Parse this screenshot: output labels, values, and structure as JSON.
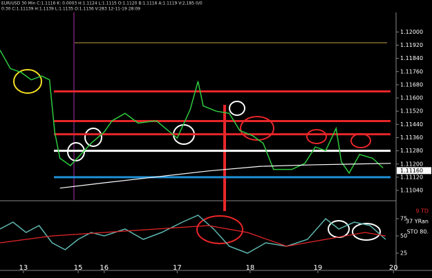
{
  "header": {
    "line1": "EUR/USD 30 Min C:1.1116 K: 0.0003 H:1.1124 L:1.1115 O:1.1120 B:1.1116 A:1.1119 V:2,185 0/0",
    "line2": "0:30 C:1.11139 H:1.1139 L:1.1135 O:1.1136 V:283 12-11-19 28:09"
  },
  "chart_data": [
    {
      "type": "line",
      "xlim": [
        0,
        152
      ],
      "xticks": [
        {
          "value": 9,
          "label": "13"
        },
        {
          "value": 30,
          "label": "15"
        },
        {
          "value": 40,
          "label": "16"
        },
        {
          "value": 68,
          "label": "17"
        },
        {
          "value": 96,
          "label": "18"
        },
        {
          "value": 122,
          "label": "19"
        },
        {
          "value": 151,
          "label": "20"
        }
      ],
      "ylim": [
        1.1099,
        1.1211
      ],
      "yticks": [
        {
          "value": 1.12,
          "label": "1.12000"
        },
        {
          "value": 1.1192,
          "label": "1.11920"
        },
        {
          "value": 1.1184,
          "label": "1.11840"
        },
        {
          "value": 1.1176,
          "label": "1.11760"
        },
        {
          "value": 1.1168,
          "label": "1.11680"
        },
        {
          "value": 1.116,
          "label": "1.11600"
        },
        {
          "value": 1.1152,
          "label": "1.11520"
        },
        {
          "value": 1.1144,
          "label": "1.11440"
        },
        {
          "value": 1.1136,
          "label": "1.11360"
        },
        {
          "value": 1.1128,
          "label": "1.11280"
        },
        {
          "value": 1.112,
          "label": "1.11200"
        },
        {
          "value": 1.1112,
          "label": "1.11120"
        },
        {
          "value": 1.1104,
          "label": "1.11040"
        }
      ],
      "last_price": {
        "value": 1.1116,
        "label": "1.11160"
      },
      "series": [
        {
          "color": "#2ecc40",
          "x": [
            0,
            4,
            8,
            12,
            16,
            19,
            21,
            23,
            27,
            31,
            35,
            40,
            43,
            48,
            53,
            60,
            68,
            73,
            76,
            78,
            83,
            88,
            92,
            97,
            101,
            105,
            112,
            117,
            121,
            125,
            129,
            131,
            134,
            138,
            143,
            147
          ],
          "values": [
            1.1189,
            1.11778,
            1.11756,
            1.1171,
            1.11733,
            1.1171,
            1.11393,
            1.11235,
            1.1119,
            1.11258,
            1.11326,
            1.11394,
            1.11462,
            1.11507,
            1.11448,
            1.11462,
            1.11357,
            1.1153,
            1.11701,
            1.11552,
            1.1152,
            1.11507,
            1.11403,
            1.11371,
            1.11326,
            1.11167,
            1.11167,
            1.11204,
            1.11303,
            1.11281,
            1.11416,
            1.11213,
            1.11145,
            1.11258,
            1.11235,
            1.11176
          ]
        },
        {
          "color": "#ffffff",
          "x": [
            23,
            40,
            60,
            80,
            100,
            120,
            150
          ],
          "values": [
            1.11054,
            1.11086,
            1.11122,
            1.11158,
            1.11186,
            1.11195,
            1.11204
          ]
        }
      ],
      "levels": [
        {
          "value": 1.1164,
          "color": "#e8262a"
        },
        {
          "value": 1.1146,
          "color": "#e8262a"
        },
        {
          "value": 1.1138,
          "color": "#e8262a"
        },
        {
          "value": 1.1128,
          "color": "#ffffff"
        },
        {
          "value": 1.1112,
          "color": "#1e90d6"
        }
      ]
    },
    {
      "type": "line",
      "xlim": [
        0,
        152
      ],
      "ylim": [
        0,
        100
      ],
      "yticks": [
        75,
        50,
        25
      ],
      "labels": [
        "9 TD",
        "37 YRan",
        "STO 80."
      ],
      "series": [
        {
          "color": "#5fb7b0",
          "x": [
            0,
            5,
            10,
            15,
            20,
            25,
            30,
            35,
            40,
            48,
            55,
            62,
            70,
            76,
            82,
            88,
            95,
            102,
            110,
            118,
            125,
            130,
            136,
            142,
            148
          ],
          "values": [
            60,
            70,
            55,
            65,
            40,
            30,
            45,
            55,
            50,
            60,
            45,
            55,
            70,
            80,
            60,
            35,
            25,
            40,
            35,
            45,
            75,
            60,
            70,
            65,
            45
          ]
        },
        {
          "color": "#e8262a",
          "x": [
            0,
            20,
            40,
            60,
            80,
            95,
            110,
            125,
            140,
            148
          ],
          "values": [
            40,
            50,
            55,
            60,
            65,
            55,
            35,
            45,
            55,
            50
          ]
        }
      ]
    }
  ]
}
